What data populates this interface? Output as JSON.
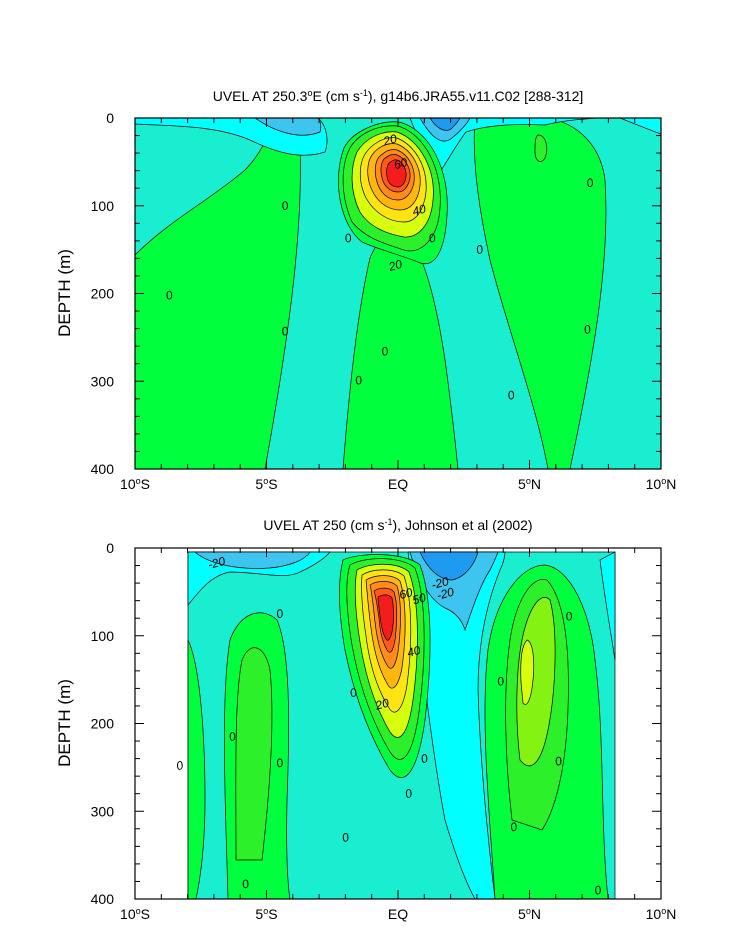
{
  "chart_data": [
    {
      "type": "heatmap",
      "subtype": "filled-contour",
      "title": "UVEL AT 250.3°E (cm s⁻¹), g14b6.JRA55.v11.C02 [288-312]",
      "title_parts": {
        "pre": "UVEL AT 250.3",
        "sup1": "o",
        "mid": "E (cm s",
        "sup2": "-1",
        "post": "), g14b6.JRA55.v11.C02 [288-312]"
      },
      "ylabel": "DEPTH (m)",
      "xlabel": "",
      "xlim": [
        -10,
        10
      ],
      "ylim": [
        400,
        0
      ],
      "x_ticks": [
        {
          "value": -10,
          "num": "10",
          "sup": "o",
          "hemi": "S"
        },
        {
          "value": -5,
          "num": "5",
          "sup": "o",
          "hemi": "S"
        },
        {
          "value": 0,
          "num": "EQ",
          "sup": "",
          "hemi": ""
        },
        {
          "value": 5,
          "num": "5",
          "sup": "o",
          "hemi": "N"
        },
        {
          "value": 10,
          "num": "10",
          "sup": "o",
          "hemi": "N"
        }
      ],
      "y_ticks": [
        0,
        100,
        200,
        300,
        400
      ],
      "contour_interval": 10,
      "levels_labeled": [
        0,
        20,
        40,
        60
      ],
      "contour_labels": [
        {
          "text": "20",
          "x": -0.3,
          "y": 25
        },
        {
          "text": "60",
          "x": 0.1,
          "y": 52
        },
        {
          "text": "40",
          "x": 0.8,
          "y": 105
        },
        {
          "text": "20",
          "x": -0.1,
          "y": 168
        },
        {
          "text": "0",
          "x": -4.3,
          "y": 100
        },
        {
          "text": "0",
          "x": -8.7,
          "y": 202
        },
        {
          "text": "0",
          "x": -4.3,
          "y": 243
        },
        {
          "text": "0",
          "x": -1.9,
          "y": 137
        },
        {
          "text": "0",
          "x": 1.3,
          "y": 137
        },
        {
          "text": "0",
          "x": 3.1,
          "y": 150
        },
        {
          "text": "0",
          "x": -0.5,
          "y": 266
        },
        {
          "text": "0",
          "x": -1.5,
          "y": 299
        },
        {
          "text": "0",
          "x": 4.3,
          "y": 316
        },
        {
          "text": "0",
          "x": 7.3,
          "y": 74
        },
        {
          "text": "0",
          "x": 7.2,
          "y": 241
        }
      ],
      "features": [
        {
          "name": "equatorial-undercurrent-core",
          "x": 0,
          "y": 80,
          "max_value": 90
        }
      ]
    },
    {
      "type": "heatmap",
      "subtype": "filled-contour",
      "title": "UVEL AT 250 (cm s⁻¹), Johnson et al (2002)",
      "title_parts": {
        "pre": "UVEL AT 250 (cm s",
        "sup1": "-1",
        "post": "), Johnson et al (2002)"
      },
      "ylabel": "DEPTH (m)",
      "xlabel": "",
      "xlim": [
        -10,
        10
      ],
      "ylim": [
        400,
        0
      ],
      "data_extent_x": [
        -8,
        8.2
      ],
      "x_ticks": [
        {
          "value": -10,
          "num": "10",
          "sup": "o",
          "hemi": "S"
        },
        {
          "value": -5,
          "num": "5",
          "sup": "o",
          "hemi": "S"
        },
        {
          "value": 0,
          "num": "EQ",
          "sup": "",
          "hemi": ""
        },
        {
          "value": 5,
          "num": "5",
          "sup": "o",
          "hemi": "N"
        },
        {
          "value": 10,
          "num": "10",
          "sup": "o",
          "hemi": "N"
        }
      ],
      "y_ticks": [
        0,
        100,
        200,
        300,
        400
      ],
      "contour_interval": 10,
      "levels_labeled": [
        -20,
        0,
        20,
        40,
        60
      ],
      "contour_labels": [
        {
          "text": "-20",
          "x": -6.9,
          "y": 17
        },
        {
          "text": "-20",
          "x": 1.6,
          "y": 40
        },
        {
          "text": "-20",
          "x": 1.8,
          "y": 52
        },
        {
          "text": "60",
          "x": 0.3,
          "y": 52
        },
        {
          "text": "50",
          "x": 0.8,
          "y": 58
        },
        {
          "text": "40",
          "x": 0.6,
          "y": 118
        },
        {
          "text": "20",
          "x": -0.6,
          "y": 178
        },
        {
          "text": "0",
          "x": -4.5,
          "y": 75
        },
        {
          "text": "0",
          "x": -6.3,
          "y": 215
        },
        {
          "text": "0",
          "x": -8.3,
          "y": 248
        },
        {
          "text": "0",
          "x": -4.5,
          "y": 245
        },
        {
          "text": "0",
          "x": -5.8,
          "y": 383
        },
        {
          "text": "0",
          "x": -1.7,
          "y": 165
        },
        {
          "text": "0",
          "x": -2.0,
          "y": 330
        },
        {
          "text": "0",
          "x": 1.0,
          "y": 240
        },
        {
          "text": "0",
          "x": 0.4,
          "y": 280
        },
        {
          "text": "0",
          "x": 3.9,
          "y": 152
        },
        {
          "text": "0",
          "x": 4.4,
          "y": 318
        },
        {
          "text": "0",
          "x": 6.5,
          "y": 78
        },
        {
          "text": "0",
          "x": 6.1,
          "y": 243
        },
        {
          "text": "0",
          "x": 7.6,
          "y": 390
        }
      ],
      "features": [
        {
          "name": "equatorial-undercurrent-core",
          "x": -0.3,
          "y": 75,
          "max_value": 90
        },
        {
          "name": "northern-subsurface-jet",
          "x": 4.5,
          "y": 140,
          "max_value": 20
        }
      ]
    }
  ],
  "colors": {
    "neg30": "#1e9bf0",
    "neg20": "#3dc4ef",
    "neg10": "#00ffff",
    "zero": "#1aeed0",
    "pos0": "#00ff3c",
    "pos10": "#2cf02a",
    "pos20": "#84f314",
    "pos30": "#d7ff0d",
    "pos40": "#ffe414",
    "pos50": "#ffb70f",
    "pos60": "#ff8c1a",
    "pos70": "#ff5a1a",
    "pos80": "#f51c1c"
  }
}
